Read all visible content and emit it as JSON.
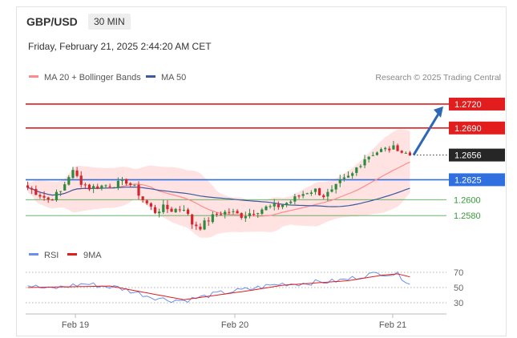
{
  "header": {
    "symbol": "GBP/USD",
    "timeframe": "30 MIN"
  },
  "datetime": "Friday, February 21, 2025 2:44:20 AM CET",
  "legend": {
    "bollinger": "MA 20 + Bollinger Bands",
    "ma50": "MA 50",
    "credit": "Research © 2025 Trading Central"
  },
  "rsi_legend": {
    "rsi": "RSI",
    "ma9": "9MA"
  },
  "colors": {
    "up": "#2e8b3e",
    "down": "#d6252a",
    "ma20": "#ff8a8a",
    "ma50": "#3b5b9e",
    "band": "#ffd9d9",
    "blue_level": "#2f6fe0",
    "red_level": "#e11d1d",
    "green_level": "#3a9a3a",
    "arrow": "#2d67b5",
    "rsi": "#6b8ff0",
    "rsi_ma": "#e11d1d"
  },
  "chart_data": {
    "type": "candlestick",
    "x_ticks": [
      "Feb 19",
      "Feb 20",
      "Feb 21"
    ],
    "y_range": [
      1.2552,
      1.2732
    ],
    "current_price": {
      "label": "1.2656",
      "value": 1.2656
    },
    "levels": [
      {
        "label": "1.2720",
        "value": 1.272,
        "kind": "resistance"
      },
      {
        "label": "1.2690",
        "value": 1.269,
        "kind": "resistance"
      },
      {
        "label": "1.2625",
        "value": 1.2625,
        "kind": "pivot"
      },
      {
        "label": "1.2600",
        "value": 1.26,
        "kind": "support"
      },
      {
        "label": "1.2580",
        "value": 1.258,
        "kind": "support"
      }
    ],
    "price_path": [
      [
        0,
        1.2615
      ],
      [
        3,
        1.2606
      ],
      [
        5,
        1.26
      ],
      [
        8,
        1.261
      ],
      [
        10,
        1.263
      ],
      [
        11,
        1.2635
      ],
      [
        13,
        1.2622
      ],
      [
        15,
        1.2615
      ],
      [
        19,
        1.2618
      ],
      [
        22,
        1.262
      ],
      [
        24,
        1.2623
      ],
      [
        26,
        1.2615
      ],
      [
        28,
        1.26
      ],
      [
        31,
        1.2585
      ],
      [
        33,
        1.259
      ],
      [
        35,
        1.2587
      ],
      [
        38,
        1.259
      ],
      [
        40,
        1.257
      ],
      [
        42,
        1.2566
      ],
      [
        44,
        1.2575
      ],
      [
        46,
        1.2582
      ],
      [
        49,
        1.2585
      ],
      [
        52,
        1.258
      ],
      [
        55,
        1.2585
      ],
      [
        58,
        1.259
      ],
      [
        61,
        1.2592
      ],
      [
        64,
        1.2598
      ],
      [
        66,
        1.2605
      ],
      [
        68,
        1.261
      ],
      [
        70,
        1.2612
      ],
      [
        72,
        1.2605
      ],
      [
        74,
        1.261
      ],
      [
        76,
        1.2622
      ],
      [
        78,
        1.2628
      ],
      [
        79,
        1.2632
      ],
      [
        80,
        1.264
      ],
      [
        82,
        1.2652
      ],
      [
        84,
        1.2658
      ],
      [
        86,
        1.2662
      ],
      [
        88,
        1.2664
      ],
      [
        90,
        1.2665
      ],
      [
        91,
        1.266
      ],
      [
        93,
        1.2656
      ]
    ],
    "candle_count": 94,
    "indicators": [
      "MA 20 + Bollinger Bands",
      "MA 50"
    ],
    "forecast_arrow": {
      "from": 1.2656,
      "to": 1.272
    },
    "rsi": {
      "ticks": [
        "70",
        "50",
        "30"
      ],
      "series_rsi": [
        [
          0,
          53
        ],
        [
          5,
          48
        ],
        [
          10,
          52
        ],
        [
          14,
          55
        ],
        [
          18,
          52
        ],
        [
          22,
          50
        ],
        [
          26,
          44
        ],
        [
          30,
          38
        ],
        [
          34,
          34
        ],
        [
          38,
          33
        ],
        [
          42,
          37
        ],
        [
          46,
          42
        ],
        [
          50,
          45
        ],
        [
          54,
          48
        ],
        [
          58,
          52
        ],
        [
          62,
          55
        ],
        [
          66,
          55
        ],
        [
          70,
          57
        ],
        [
          74,
          58
        ],
        [
          78,
          61
        ],
        [
          82,
          66
        ],
        [
          86,
          69
        ],
        [
          90,
          67
        ],
        [
          93,
          56
        ]
      ],
      "series_ma": [
        [
          0,
          50
        ],
        [
          10,
          51
        ],
        [
          20,
          52
        ],
        [
          30,
          42
        ],
        [
          38,
          34
        ],
        [
          46,
          40
        ],
        [
          54,
          46
        ],
        [
          62,
          53
        ],
        [
          70,
          56
        ],
        [
          78,
          59
        ],
        [
          86,
          66
        ],
        [
          90,
          68
        ],
        [
          93,
          64
        ]
      ]
    }
  }
}
